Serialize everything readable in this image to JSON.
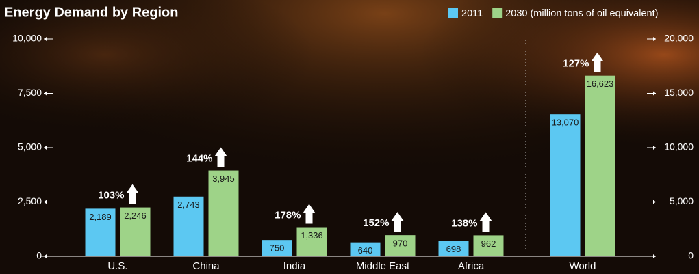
{
  "chart_data": [
    {
      "type": "bar",
      "title": "Energy Demand by Region",
      "categories": [
        "U.S.",
        "China",
        "India",
        "Middle East",
        "Africa"
      ],
      "series": [
        {
          "name": "2011",
          "color": "#5cc8f2",
          "values": [
            2189,
            2743,
            750,
            640,
            698
          ],
          "value_labels": [
            "2,189",
            "2,743",
            "750",
            "640",
            "698"
          ]
        },
        {
          "name": "2030 (million tons of oil equivalent)",
          "color": "#9ed388",
          "values": [
            2246,
            3945,
            1336,
            970,
            962
          ],
          "value_labels": [
            "2,246",
            "3,945",
            "1,336",
            "970",
            "962"
          ]
        }
      ],
      "annotations": [
        "103%",
        "144%",
        "178%",
        "152%",
        "138%"
      ],
      "ylim": [
        0,
        10000
      ],
      "yticks": [
        0,
        {
          "value": 2500,
          "label": "2,500"
        },
        {
          "value": 5000,
          "label": "5,000"
        },
        {
          "value": 7500,
          "label": "7,500"
        },
        {
          "value": 10000,
          "label": "10,000"
        }
      ],
      "legend": "top-right"
    },
    {
      "type": "bar",
      "categories": [
        "World"
      ],
      "series": [
        {
          "color": "#5cc8f2",
          "values": [
            13070
          ],
          "value_labels": [
            "13,070"
          ]
        },
        {
          "color": "#9ed388",
          "values": [
            16623
          ],
          "value_labels": [
            "16,623"
          ]
        }
      ],
      "annotations": [
        "127%"
      ],
      "ylim": [
        0,
        20000
      ],
      "yticks": [
        0,
        {
          "value": 5000,
          "label": "5,000"
        },
        {
          "value": 10000,
          "label": "10,000"
        },
        {
          "value": 15000,
          "label": "15,000"
        },
        {
          "value": 20000,
          "label": "20,000"
        }
      ]
    }
  ]
}
